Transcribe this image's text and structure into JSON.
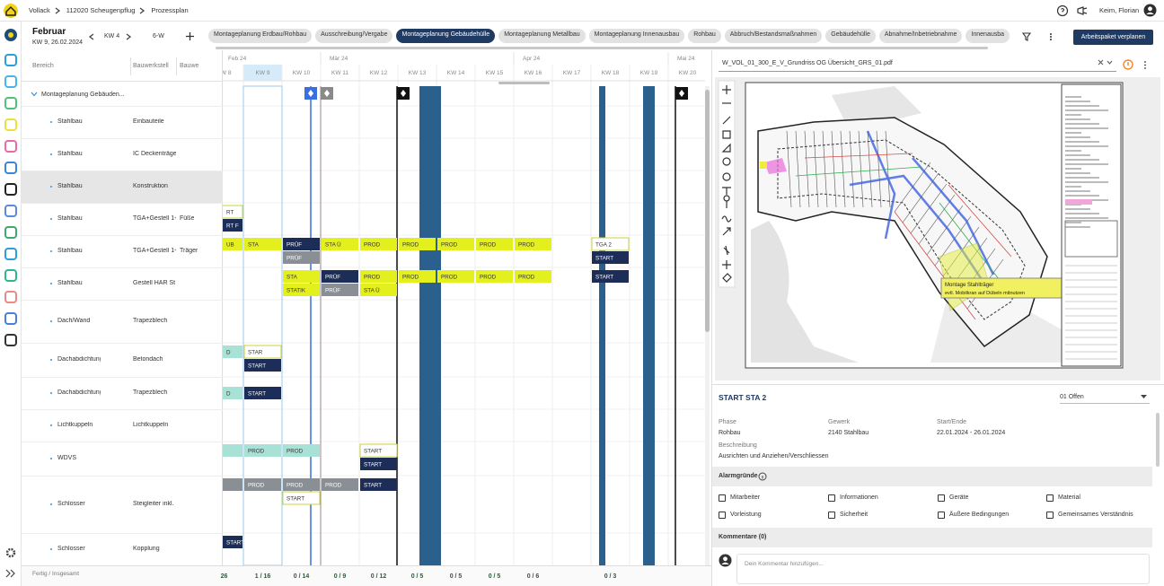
{
  "header": {
    "breadcrumb": [
      "Vollack",
      "112020 Scheugenpflug",
      "Prozessplan"
    ],
    "user": "Keim, Florian"
  },
  "toolbar": {
    "month": "Februar",
    "date": "KW 9, 26.02.2024",
    "week": "KW 4",
    "view": "6-W",
    "tabs": [
      "Montageplanung Erdbau/Rohbau",
      "Ausschreibung/Vergabe",
      "Montageplanung Gebäudehülle",
      "Montageplanung Metallbau",
      "Montageplanung Innenausbau",
      "Rohbau",
      "Abbruch/Bestandsmaßnahmen",
      "Gebäudehülle",
      "Abnahme/Inbetriebnahme",
      "Innenausba"
    ],
    "active_tab": 2,
    "action": "Arbeitspaket verplanen"
  },
  "table": {
    "columns": [
      "Bereich",
      "Bauwerkstell",
      "Bauwe"
    ],
    "group": "Montageplanung Gebäuden...",
    "rows": [
      [
        "Stahlbau",
        "Einbauteile",
        null
      ],
      [
        "Stahlbau",
        "IC Deckenträge",
        null
      ],
      [
        "Stahlbau",
        "Konstruktion",
        null
      ],
      [
        "Stahlbau",
        "TGA+Gestell 1+",
        "Füße"
      ],
      [
        "Stahlbau",
        "TGA+Gestell 1+",
        "Träger"
      ],
      [
        "Stahlbau",
        "Gestell HAR St",
        null
      ],
      [
        "Dach/Wand",
        "Trapezblech",
        null
      ],
      [
        "Dachabdichtung",
        "Betondach",
        null
      ],
      [
        "Dachabdichtung",
        "Trapezblech",
        null
      ],
      [
        "Lichtkuppeln",
        "Lichtkuppeln",
        null
      ],
      [
        "WDVS",
        null,
        null
      ],
      [
        "Schlosser",
        "Steigleiter inkl.",
        null
      ],
      [
        "Schlosser",
        "Kopplung",
        null
      ]
    ],
    "selected_row": 2,
    "filter": "Fertig / Insgesamt"
  },
  "timeline": {
    "months": [
      {
        "label": "Feb 24",
        "week": 0
      },
      {
        "label": "Mär 24",
        "week": 3
      },
      {
        "label": "Apr 24",
        "week": 8
      },
      {
        "label": "Mai 24",
        "week": 12
      }
    ],
    "weeks": [
      "KW 8",
      "KW 9",
      "KW 10",
      "KW 11",
      "KW 12",
      "KW 13",
      "KW 14",
      "KW 15",
      "KW 16",
      "KW 17",
      "KW 18",
      "KW 19",
      "KW 20"
    ],
    "current_week": 1,
    "counts": [
      "26",
      "1 / 16",
      "0 / 14",
      "0 / 9",
      "0 / 12",
      "0 / 5",
      "0 / 5",
      "0 / 5",
      "0 / 6",
      null,
      "0 / 3"
    ],
    "bars": [
      {
        "label": "RT",
        "row": 3,
        "week": 0,
        "span": 1,
        "style": "outline",
        "lane": "top"
      },
      {
        "label": "RT F",
        "row": 3,
        "week": 0,
        "span": 1,
        "style": "dark",
        "lane": "bottom"
      },
      {
        "label": "UB",
        "row": 4,
        "week": 0,
        "span": 1,
        "style": "yellow",
        "lane": "top"
      },
      {
        "label": "STA",
        "row": 4,
        "week": 1,
        "span": 1,
        "style": "yellow",
        "lane": "top"
      },
      {
        "label": "PRÜF",
        "row": 4,
        "week": 2,
        "span": 1,
        "style": "dark",
        "lane": "top"
      },
      {
        "label": "STA Ü",
        "row": 4,
        "week": 3,
        "span": 1,
        "style": "yellow",
        "lane": "top"
      },
      {
        "label": "PROD",
        "row": 4,
        "week": 4,
        "span": 1,
        "style": "yellow",
        "lane": "top"
      },
      {
        "label": "PROD",
        "row": 4,
        "week": 5,
        "span": 1,
        "style": "yellow",
        "lane": "top"
      },
      {
        "label": "PROD",
        "row": 4,
        "week": 6,
        "span": 1,
        "style": "yellow",
        "lane": "top"
      },
      {
        "label": "PROD",
        "row": 4,
        "week": 7,
        "span": 1,
        "style": "yellow",
        "lane": "top"
      },
      {
        "label": "PROD",
        "row": 4,
        "week": 8,
        "span": 1,
        "style": "yellow",
        "lane": "top"
      },
      {
        "label": "TGA 2",
        "row": 4,
        "week": 10,
        "span": 1,
        "style": "outline",
        "lane": "top"
      },
      {
        "label": "PRÜF",
        "row": 4,
        "week": 2,
        "span": 1,
        "style": "gray",
        "lane": "bottom"
      },
      {
        "label": "START",
        "row": 4,
        "week": 10,
        "span": 1,
        "style": "dark",
        "lane": "bottom"
      },
      {
        "label": "STA",
        "row": 5,
        "week": 2,
        "span": 1,
        "style": "yellow",
        "lane": "top"
      },
      {
        "label": "PRÜF",
        "row": 5,
        "week": 3,
        "span": 1,
        "style": "dark",
        "lane": "top"
      },
      {
        "label": "PROD",
        "row": 5,
        "week": 4,
        "span": 1,
        "style": "yellow",
        "lane": "top"
      },
      {
        "label": "PROD",
        "row": 5,
        "week": 5,
        "span": 1,
        "style": "yellow",
        "lane": "top"
      },
      {
        "label": "PROD",
        "row": 5,
        "week": 6,
        "span": 1,
        "style": "yellow",
        "lane": "top"
      },
      {
        "label": "PROD",
        "row": 5,
        "week": 7,
        "span": 1,
        "style": "yellow",
        "lane": "top"
      },
      {
        "label": "PROD",
        "row": 5,
        "week": 8,
        "span": 1,
        "style": "yellow",
        "lane": "top"
      },
      {
        "label": "START",
        "row": 5,
        "week": 10,
        "span": 1,
        "style": "dark",
        "lane": "top"
      },
      {
        "label": "STATIK",
        "row": 5,
        "week": 2,
        "span": 1,
        "style": "yellow",
        "lane": "bottom"
      },
      {
        "label": "PRÜF",
        "row": 5,
        "week": 3,
        "span": 1,
        "style": "gray",
        "lane": "bottom"
      },
      {
        "label": "STA Ü",
        "row": 5,
        "week": 4,
        "span": 1,
        "style": "yellow",
        "lane": "bottom"
      },
      {
        "label": "D",
        "row": 7,
        "week": 0,
        "span": 1,
        "style": "teal",
        "lane": "top"
      },
      {
        "label": "STAR",
        "row": 7,
        "week": 1,
        "span": 1,
        "style": "outline",
        "lane": "top"
      },
      {
        "label": "START",
        "row": 7,
        "week": 1,
        "span": 1,
        "style": "dark",
        "lane": "bottom"
      },
      {
        "label": "D",
        "row": 8,
        "week": 0,
        "span": 1,
        "style": "teal",
        "lane": "mid"
      },
      {
        "label": "START",
        "row": 8,
        "week": 1,
        "span": 1,
        "style": "dark",
        "lane": "mid"
      },
      {
        "row": 10,
        "week": 0,
        "span": 1,
        "style": "teal",
        "lane": "top"
      },
      {
        "label": "PROD",
        "row": 10,
        "week": 1,
        "span": 1,
        "style": "teal",
        "lane": "top"
      },
      {
        "label": "PROD",
        "row": 10,
        "week": 2,
        "span": 1,
        "style": "teal",
        "lane": "top"
      },
      {
        "label": "START",
        "row": 10,
        "week": 4,
        "span": 1,
        "style": "outline",
        "lane": "top"
      },
      {
        "label": "START",
        "row": 10,
        "week": 4,
        "span": 1,
        "style": "dark",
        "lane": "bottom"
      },
      {
        "row": 11,
        "week": 0,
        "span": 1,
        "style": "gray",
        "lane": "top"
      },
      {
        "label": "PROD",
        "row": 11,
        "week": 1,
        "span": 1,
        "style": "gray",
        "lane": "top"
      },
      {
        "label": "PROD",
        "row": 11,
        "week": 2,
        "span": 1,
        "style": "gray",
        "lane": "top"
      },
      {
        "label": "PROD",
        "row": 11,
        "week": 3,
        "span": 1,
        "style": "gray",
        "lane": "top"
      },
      {
        "label": "START",
        "row": 11,
        "week": 4,
        "span": 1,
        "style": "dark",
        "lane": "top"
      },
      {
        "label": "START",
        "row": 11,
        "week": 2,
        "span": 1,
        "style": "outline",
        "lane": "bottom"
      },
      {
        "label": "START K",
        "row": 12,
        "week": 0,
        "span": 1,
        "style": "dark",
        "lane": "top"
      }
    ]
  },
  "viewer": {
    "file": "W_VOL_01_300_E_V_Grundriss OG Übersicht_GRS_01.pdf",
    "annotation": [
      "Montage Stahlträger",
      "evtl. Mobilkran auf Dübeln mitnutzen"
    ]
  },
  "detail": {
    "title": "START STA 2",
    "status": "01 Offen",
    "fields": [
      {
        "label": "Phase",
        "value": "Rohbau"
      },
      {
        "label": "Gewerk",
        "value": "2140 Stahlbau"
      },
      {
        "label": "Start/Ende",
        "value": "22.01.2024 - 26.01.2024"
      }
    ],
    "description_label": "Beschreibung",
    "description": "Ausrichten und Anziehen/Verschliessen",
    "alarm_title": "Alarmgründe",
    "alarms": [
      "Mitarbeiter",
      "Informationen",
      "Geräte",
      "Material",
      "Vorleistung",
      "Sicherheit",
      "Äußere Bedingungen",
      "Gemeinsames Verständnis"
    ],
    "comments_title": "Kommentare (0)",
    "comment_placeholder": "Dein Kommentar hinzufügen..."
  }
}
